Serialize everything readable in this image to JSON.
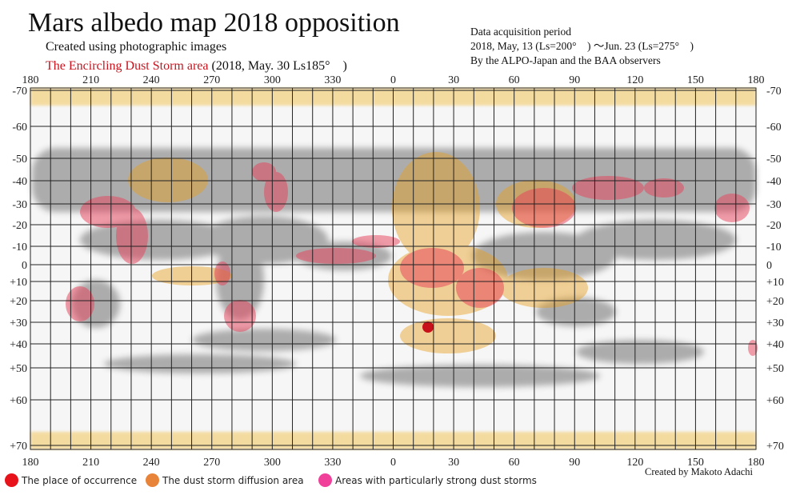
{
  "title": "Mars albedo map 2018 opposition",
  "subtitle": "Created using photographic images",
  "storm_label": "The Encircling Dust Storm area",
  "storm_date": "(2018, May. 30 Ls185°　)",
  "acquisition": {
    "line1": "Data acquisition period",
    "line2": "2018, May, 13 (Ls=200°　) ～Jun. 23 (Ls=275°　)",
    "line3": "By the ALPO-Japan and the BAA observers"
  },
  "credit": "Created by Makoto Adachi",
  "longitudes": [
    "180",
    "210",
    "240",
    "270",
    "300",
    "330",
    "0",
    "30",
    "60",
    "90",
    "120",
    "150",
    "180"
  ],
  "latitudes": [
    "-70",
    "-60",
    "-50",
    "-40",
    "-30",
    "-20",
    "-10",
    "0",
    "+10",
    "+20",
    "+30",
    "+40",
    "+50",
    "+60",
    "+70"
  ],
  "legend": [
    {
      "label": "The place of occurrence",
      "color": "#e8121a"
    },
    {
      "label": "The dust storm diffusion area",
      "color": "#e8843a"
    },
    {
      "label": "Areas with particularly strong dust storms",
      "color": "#f0409a"
    }
  ],
  "colors": {
    "polar_cap": "#f2c65a",
    "albedo_dark": "#6e6e6e",
    "origin": "#c8101a",
    "diffusion": "#e8a020",
    "strong": "#e8405a"
  }
}
